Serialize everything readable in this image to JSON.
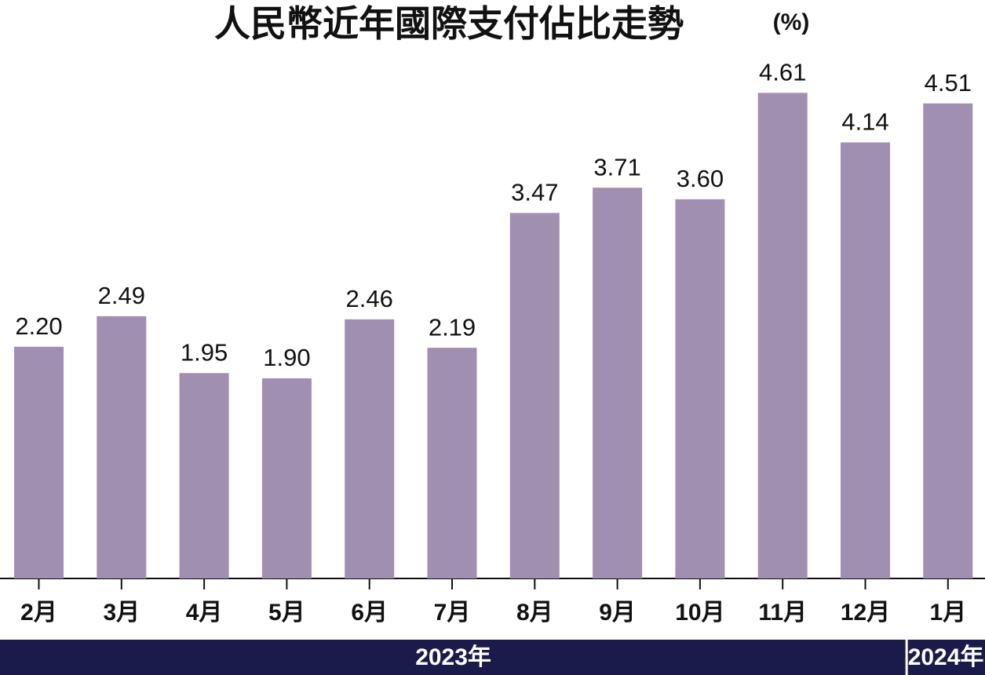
{
  "chart_data": {
    "type": "bar",
    "title": "人民幣近年國際支付佔比走勢",
    "unit": "(%)",
    "categories": [
      "2月",
      "3月",
      "4月",
      "5月",
      "6月",
      "7月",
      "8月",
      "9月",
      "10月",
      "11月",
      "12月",
      "1月"
    ],
    "values": [
      2.2,
      2.49,
      1.95,
      1.9,
      2.46,
      2.19,
      3.47,
      3.71,
      3.6,
      4.61,
      4.14,
      4.51
    ],
    "value_labels": [
      "2.20",
      "2.49",
      "1.95",
      "1.90",
      "2.46",
      "2.19",
      "3.47",
      "3.71",
      "3.60",
      "4.61",
      "4.14",
      "4.51"
    ],
    "color": "#a18fb1",
    "ylim": [
      0,
      5
    ],
    "x_groups": [
      {
        "label": "2023年",
        "count": 11
      },
      {
        "label": "2024年",
        "count": 1
      }
    ]
  }
}
